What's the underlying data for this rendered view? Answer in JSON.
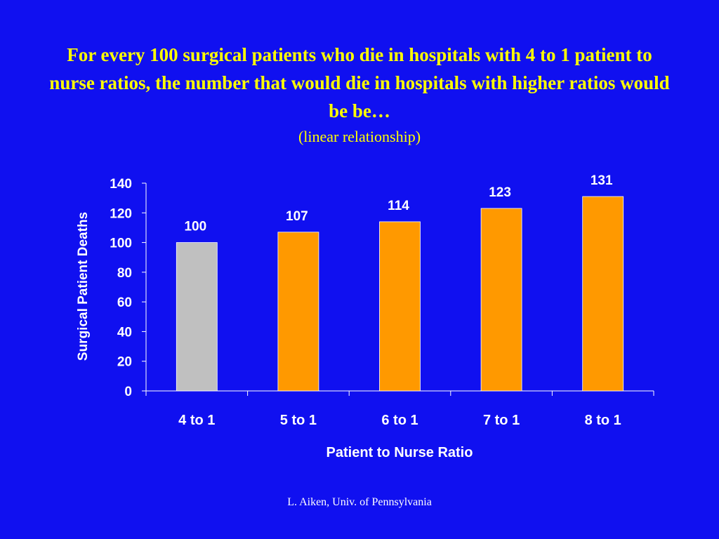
{
  "slide": {
    "title": "For every 100 surgical patients who die in hospitals with 4 to 1 patient to nurse ratios, the number that would die in hospitals with higher ratios would be be…",
    "subtitle": "(linear relationship)",
    "footer": "L. Aiken, Univ. of Pennsylvania"
  },
  "chart_data": {
    "type": "bar",
    "categories": [
      "4 to 1",
      "5 to 1",
      "6 to 1",
      "7 to 1",
      "8 to 1"
    ],
    "values": [
      100,
      107,
      114,
      123,
      131
    ],
    "bar_colors": [
      "#c0c0c0",
      "#ff9900",
      "#ff9900",
      "#ff9900",
      "#ff9900"
    ],
    "xlabel": "Patient to Nurse Ratio",
    "ylabel": "Surgical Patient Deaths",
    "ylim": [
      0,
      140
    ],
    "yticks": [
      0,
      20,
      40,
      60,
      80,
      100,
      120,
      140
    ],
    "grid": false,
    "legend": "none",
    "axis_color": "#ffffff"
  }
}
